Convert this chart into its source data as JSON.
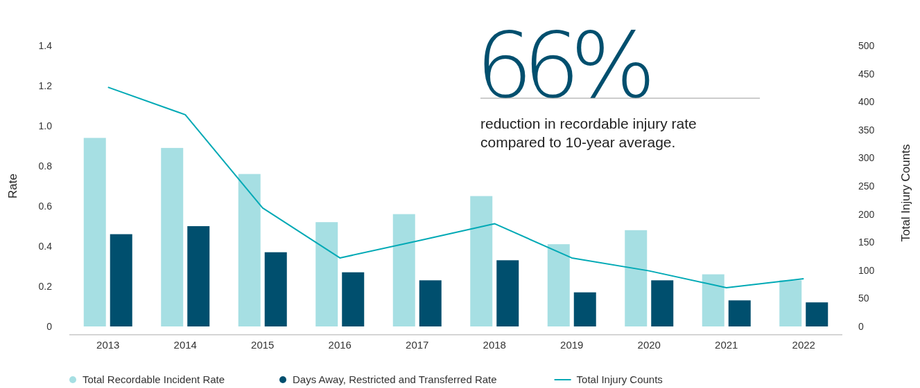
{
  "chart_data": {
    "type": "bar",
    "ylabel": "Rate",
    "y2label": "Total Injury Counts",
    "categories": [
      "2013",
      "2014",
      "2015",
      "2016",
      "2017",
      "2018",
      "2019",
      "2020",
      "2021",
      "2022"
    ],
    "series": [
      {
        "name": "Total Recordable Incident Rate",
        "color": "#a6dfe3",
        "values": [
          0.94,
          0.89,
          0.76,
          0.52,
          0.56,
          0.65,
          0.41,
          0.48,
          0.26,
          0.23
        ]
      },
      {
        "name": "Days Away, Restricted and Transferred Rate",
        "color": "#004f6e",
        "values": [
          0.46,
          0.5,
          0.37,
          0.27,
          0.23,
          0.33,
          0.17,
          0.23,
          0.13,
          0.12
        ]
      },
      {
        "name": "Total Injury Counts",
        "type": "line",
        "axis": "y2",
        "color": "#00a9b5",
        "values": [
          426,
          377,
          211,
          122,
          152,
          183,
          122,
          99,
          69,
          85
        ]
      }
    ],
    "ylim": [
      0,
      1.4
    ],
    "yticks": [
      0,
      0.2,
      0.4,
      0.6,
      0.8,
      {
        "value": 1,
        "label": "1.0"
      },
      1.2,
      1.4
    ],
    "y2lim": [
      0,
      500
    ],
    "y2ticks": [
      0,
      50,
      100,
      150,
      200,
      250,
      300,
      350,
      400,
      450,
      500
    ],
    "legend": "bottom",
    "grid": false,
    "annotations": [
      "66%",
      "reduction in recordable injury rate compared to 10-year average."
    ]
  }
}
